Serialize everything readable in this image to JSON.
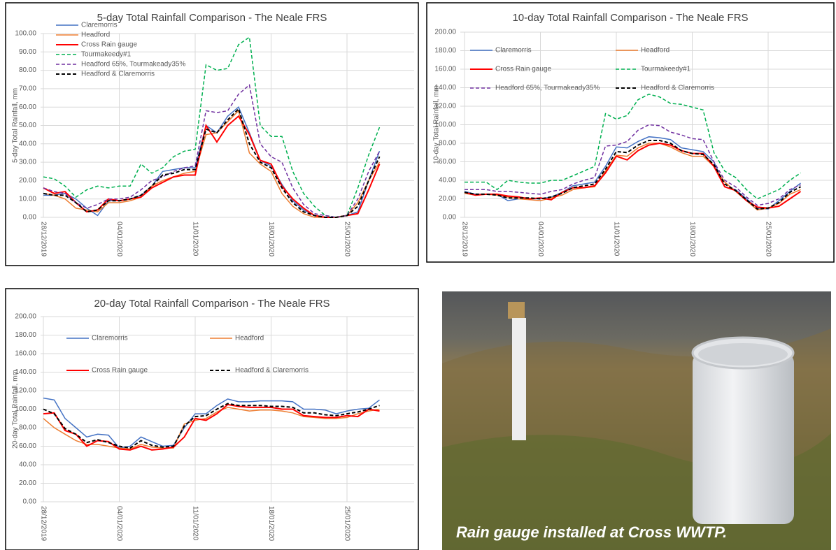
{
  "chart_data": [
    {
      "type": "line",
      "title": "5-day Total Rainfall Comparison - The Neale FRS",
      "y_label": "5-day Total Rainfall, mm",
      "categories": [
        "28/12/2019",
        null,
        null,
        null,
        null,
        null,
        null,
        "04/01/2020",
        null,
        null,
        null,
        null,
        null,
        null,
        "11/01/2020",
        null,
        null,
        null,
        null,
        null,
        null,
        "18/01/2020",
        null,
        null,
        null,
        null,
        null,
        null,
        "25/01/2020",
        null,
        null,
        null
      ],
      "ylim": [
        0,
        100
      ],
      "yticks": [
        {
          "value": 0,
          "label": "0.00"
        },
        {
          "value": 10,
          "label": "10.00"
        },
        {
          "value": 20,
          "label": "20.00"
        },
        {
          "value": 30,
          "label": "30.00"
        },
        {
          "value": 40,
          "label": "40.00"
        },
        {
          "value": 50,
          "label": "50.00"
        },
        {
          "value": 60,
          "label": "60.00"
        },
        {
          "value": 70,
          "label": "70.00"
        },
        {
          "value": 80,
          "label": "80.00"
        },
        {
          "value": 90,
          "label": "90.00"
        },
        {
          "value": 100,
          "label": "100.00"
        }
      ],
      "grid": true,
      "legend": "top-left",
      "legend_columns": 1,
      "series": [
        {
          "name": "Claremorris",
          "color": "#4472c4",
          "style": "solid",
          "values": [
            12,
            12,
            13,
            10,
            5,
            1,
            9,
            9,
            10,
            12,
            17,
            25,
            26,
            27,
            27,
            50,
            46,
            55,
            60,
            46,
            31,
            28,
            18,
            9,
            4,
            1,
            0,
            0,
            1,
            3,
            20,
            36
          ]
        },
        {
          "name": "Headford",
          "color": "#ed7d31",
          "style": "solid",
          "values": [
            13,
            12,
            10,
            5,
            4,
            3,
            8,
            8,
            9,
            11,
            17,
            20,
            22,
            24,
            25,
            45,
            46,
            52,
            58,
            35,
            29,
            25,
            13,
            6,
            2,
            0,
            0,
            0,
            1,
            8,
            20,
            30
          ]
        },
        {
          "name": "Cross Rain gauge",
          "color": "#ff0000",
          "style": "solid",
          "values": [
            16,
            13,
            14,
            8,
            3,
            4,
            10,
            9,
            10,
            11,
            16,
            19,
            22,
            23,
            23,
            50,
            41,
            50,
            55,
            45,
            31,
            29,
            17,
            10,
            5,
            1,
            0,
            0,
            1,
            2,
            15,
            29
          ]
        },
        {
          "name": "Tourmakeedy#1",
          "color": "#00b050",
          "style": "dashed",
          "values": [
            22,
            21,
            17,
            11,
            15,
            17,
            16,
            17,
            17,
            29,
            24,
            27,
            33,
            36,
            37,
            83,
            80,
            81,
            94,
            98,
            50,
            44,
            44,
            25,
            13,
            6,
            1,
            0,
            1,
            16,
            34,
            49
          ]
        },
        {
          "name": "Headford 65%, Tourmakeady35%",
          "color": "#7030a0",
          "style": "dashed",
          "values": [
            16,
            14,
            13,
            8,
            5,
            7,
            10,
            10,
            11,
            15,
            20,
            22,
            25,
            27,
            28,
            58,
            57,
            58,
            67,
            72,
            40,
            33,
            30,
            16,
            7,
            2,
            1,
            0,
            1,
            10,
            25,
            36
          ]
        },
        {
          "name": "Headford & Claremorris",
          "color": "#000000",
          "style": "dashed",
          "values": [
            13,
            12,
            12,
            8,
            3,
            4,
            9,
            9,
            10,
            12,
            17,
            23,
            24,
            26,
            26,
            48,
            46,
            53,
            59,
            40,
            30,
            27,
            16,
            8,
            3,
            1,
            0,
            0,
            1,
            6,
            20,
            33
          ]
        }
      ]
    },
    {
      "type": "line",
      "title": "10-day Total Rainfall Comparison - The Neale FRS",
      "y_label": "10-day Total Rainfall, mm",
      "categories": [
        "28/12/2019",
        null,
        null,
        null,
        null,
        null,
        null,
        "04/01/2020",
        null,
        null,
        null,
        null,
        null,
        null,
        "11/01/2020",
        null,
        null,
        null,
        null,
        null,
        null,
        "18/01/2020",
        null,
        null,
        null,
        null,
        null,
        null,
        "25/01/2020",
        null,
        null,
        null
      ],
      "ylim": [
        0,
        200
      ],
      "yticks": [
        {
          "value": 0,
          "label": "0.00"
        },
        {
          "value": 20,
          "label": "20.00"
        },
        {
          "value": 40,
          "label": "40.00"
        },
        {
          "value": 60,
          "label": "60.00"
        },
        {
          "value": 80,
          "label": "80.00"
        },
        {
          "value": 100,
          "label": "100.00"
        },
        {
          "value": 120,
          "label": "120.00"
        },
        {
          "value": 140,
          "label": "140.00"
        },
        {
          "value": 160,
          "label": "160.00"
        },
        {
          "value": 180,
          "label": "180.00"
        },
        {
          "value": 200,
          "label": "200.00"
        }
      ],
      "grid": true,
      "legend": "top-left",
      "legend_columns": 2,
      "series": [
        {
          "name": "Claremorris",
          "color": "#4472c4",
          "style": "solid",
          "values": [
            28,
            25,
            25,
            25,
            18,
            20,
            20,
            20,
            22,
            27,
            34,
            36,
            38,
            55,
            76,
            75,
            82,
            87,
            86,
            84,
            75,
            73,
            71,
            60,
            33,
            30,
            20,
            10,
            9,
            18,
            28,
            37
          ]
        },
        {
          "name": "Headford",
          "color": "#ed7d31",
          "style": "solid",
          "values": [
            26,
            24,
            25,
            24,
            22,
            20,
            19,
            18,
            21,
            24,
            30,
            32,
            33,
            50,
            67,
            66,
            75,
            80,
            80,
            76,
            70,
            66,
            66,
            55,
            38,
            28,
            18,
            8,
            10,
            15,
            25,
            30
          ]
        },
        {
          "name": "Cross Rain gauge",
          "color": "#ff0000",
          "style": "solid",
          "values": [
            27,
            24,
            25,
            25,
            23,
            22,
            20,
            21,
            19,
            27,
            32,
            32,
            34,
            48,
            66,
            62,
            72,
            78,
            80,
            78,
            72,
            69,
            69,
            55,
            33,
            29,
            18,
            11,
            10,
            12,
            20,
            28
          ]
        },
        {
          "name": "Tourmakeedy#1",
          "color": "#00b050",
          "style": "dashed",
          "values": [
            38,
            38,
            38,
            30,
            40,
            38,
            37,
            37,
            40,
            40,
            45,
            50,
            55,
            112,
            106,
            110,
            127,
            133,
            130,
            123,
            122,
            119,
            116,
            70,
            50,
            43,
            30,
            20,
            25,
            30,
            40,
            48
          ]
        },
        {
          "name": "Headford 65%, Tourmakeady35%",
          "color": "#7030a0",
          "style": "dashed",
          "values": [
            30,
            30,
            30,
            28,
            28,
            27,
            26,
            25,
            28,
            30,
            36,
            40,
            43,
            77,
            78,
            82,
            94,
            100,
            99,
            92,
            89,
            85,
            84,
            60,
            40,
            33,
            22,
            13,
            15,
            20,
            30,
            35
          ]
        },
        {
          "name": "Headford & Claremorris",
          "color": "#000000",
          "style": "dashed",
          "values": [
            27,
            25,
            25,
            24,
            21,
            21,
            21,
            20,
            22,
            26,
            32,
            34,
            36,
            52,
            71,
            70,
            78,
            83,
            83,
            80,
            72,
            69,
            68,
            57,
            36,
            29,
            19,
            9,
            10,
            16,
            27,
            33
          ]
        }
      ]
    },
    {
      "type": "line",
      "title": "20-day Total Rainfall Comparison - The Neale FRS",
      "y_label": "20-day Total Rainfall, mm",
      "categories": [
        "28/12/2019",
        null,
        null,
        null,
        null,
        null,
        null,
        "04/01/2020",
        null,
        null,
        null,
        null,
        null,
        null,
        "11/01/2020",
        null,
        null,
        null,
        null,
        null,
        null,
        "18/01/2020",
        null,
        null,
        null,
        null,
        null,
        null,
        "25/01/2020",
        null,
        null,
        null
      ],
      "ylim": [
        0,
        200
      ],
      "yticks": [
        {
          "value": 0,
          "label": "0.00"
        },
        {
          "value": 20,
          "label": "20.00"
        },
        {
          "value": 40,
          "label": "40.00"
        },
        {
          "value": 60,
          "label": "60.00"
        },
        {
          "value": 80,
          "label": "80.00"
        },
        {
          "value": 100,
          "label": "100.00"
        },
        {
          "value": 120,
          "label": "120.00"
        },
        {
          "value": 140,
          "label": "140.00"
        },
        {
          "value": 160,
          "label": "160.00"
        },
        {
          "value": 180,
          "label": "180.00"
        },
        {
          "value": 200,
          "label": "200.00"
        }
      ],
      "grid": true,
      "legend": "top-left",
      "legend_columns": 2,
      "series": [
        {
          "name": "Claremorris",
          "color": "#4472c4",
          "style": "solid",
          "values": [
            112,
            110,
            90,
            80,
            70,
            73,
            72,
            58,
            60,
            70,
            65,
            60,
            61,
            80,
            95,
            95,
            104,
            111,
            108,
            108,
            109,
            109,
            109,
            108,
            100,
            100,
            99,
            95,
            98,
            100,
            101,
            110
          ]
        },
        {
          "name": "Headford",
          "color": "#ed7d31",
          "style": "solid",
          "values": [
            90,
            80,
            73,
            66,
            62,
            62,
            60,
            58,
            57,
            62,
            59,
            58,
            58,
            84,
            88,
            90,
            97,
            102,
            100,
            98,
            99,
            99,
            98,
            96,
            92,
            91,
            90,
            90,
            91,
            95,
            98,
            100
          ]
        },
        {
          "name": "Cross Rain gauge",
          "color": "#ff0000",
          "style": "solid",
          "values": [
            95,
            96,
            77,
            73,
            60,
            66,
            65,
            57,
            56,
            60,
            56,
            57,
            59,
            70,
            90,
            88,
            95,
            105,
            103,
            102,
            102,
            102,
            100,
            100,
            93,
            92,
            91,
            91,
            93,
            92,
            100,
            98
          ]
        },
        {
          "name": "Headford & Claremorris",
          "color": "#000000",
          "style": "dashed",
          "values": [
            100,
            95,
            79,
            73,
            64,
            67,
            64,
            60,
            58,
            66,
            61,
            59,
            60,
            82,
            92,
            93,
            100,
            106,
            104,
            104,
            104,
            103,
            103,
            102,
            96,
            96,
            94,
            93,
            95,
            97,
            100,
            104
          ]
        }
      ]
    }
  ],
  "photo": {
    "caption": "Rain gauge installed at Cross WWTP."
  }
}
